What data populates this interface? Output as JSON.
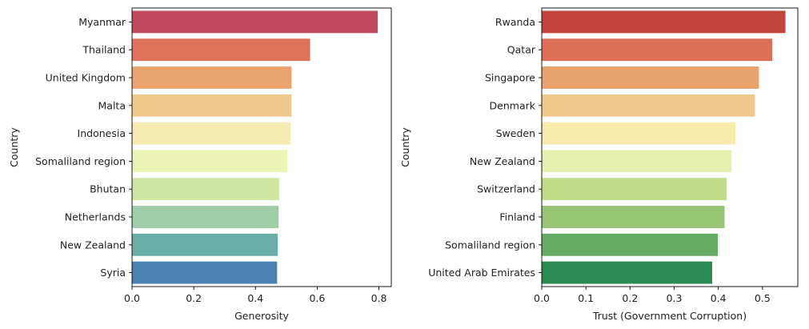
{
  "chart_data": [
    {
      "type": "bar",
      "orientation": "horizontal",
      "categories": [
        "Myanmar",
        "Thailand",
        "United Kingdom",
        "Malta",
        "Indonesia",
        "Somaliland region",
        "Bhutan",
        "Netherlands",
        "New Zealand",
        "Syria"
      ],
      "values": [
        0.796,
        0.577,
        0.517,
        0.517,
        0.514,
        0.503,
        0.477,
        0.475,
        0.472,
        0.47
      ],
      "colors": [
        "#c24a5f",
        "#df735a",
        "#eaa36d",
        "#eec98a",
        "#f6ebb0",
        "#ecf4b6",
        "#d1e6a3",
        "#a0cea8",
        "#69aea5",
        "#4a82b3"
      ],
      "title": "",
      "xlabel": "Generosity",
      "ylabel": "Country",
      "xlim": [
        0,
        0.84
      ],
      "xticks": [
        0.0,
        0.2,
        0.4,
        0.6,
        0.8
      ],
      "xtick_labels": [
        "0.0",
        "0.2",
        "0.4",
        "0.6",
        "0.8"
      ],
      "grid": false
    },
    {
      "type": "bar",
      "orientation": "horizontal",
      "categories": [
        "Rwanda",
        "Qatar",
        "Singapore",
        "Denmark",
        "Sweden",
        "New Zealand",
        "Switzerland",
        "Finland",
        "Somaliland region",
        "United Arab Emirates"
      ],
      "values": [
        0.552,
        0.522,
        0.492,
        0.483,
        0.439,
        0.43,
        0.419,
        0.414,
        0.399,
        0.386
      ],
      "colors": [
        "#c0433c",
        "#dc6f54",
        "#eaa26d",
        "#eec98a",
        "#f8ebab",
        "#e6f0ae",
        "#c2dc88",
        "#96c473",
        "#64ac64",
        "#2a8a51"
      ],
      "title": "",
      "xlabel": "Trust (Government Corruption)",
      "ylabel": "Country",
      "xlim": [
        0,
        0.58
      ],
      "xticks": [
        0.0,
        0.1,
        0.2,
        0.3,
        0.4,
        0.5
      ],
      "xtick_labels": [
        "0.0",
        "0.1",
        "0.2",
        "0.3",
        "0.4",
        "0.5"
      ],
      "grid": false
    }
  ]
}
